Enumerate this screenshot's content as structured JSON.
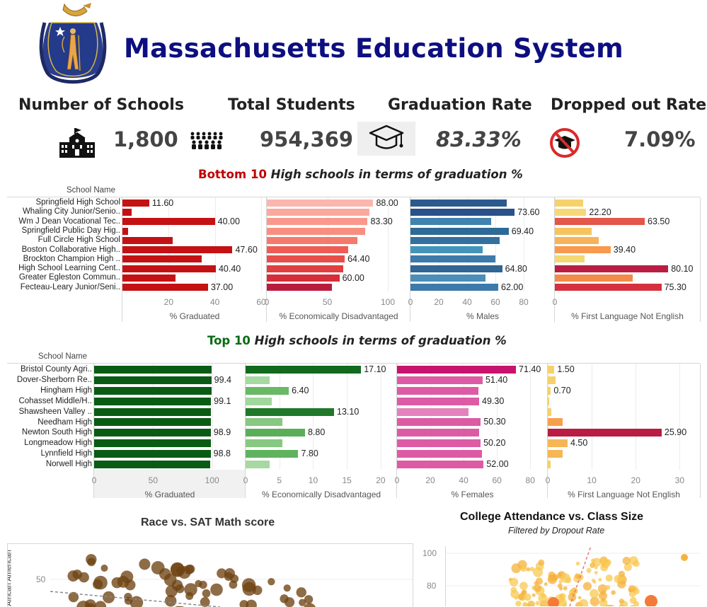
{
  "header": {
    "title": "Massachusetts Education System"
  },
  "kpis": [
    {
      "label": "Number of Schools",
      "value": "1,800",
      "icon": "school-building-icon"
    },
    {
      "label": "Total Students",
      "value": "954,369",
      "icon": "students-crowd-icon"
    },
    {
      "label": "Graduation Rate",
      "value": "83.33%",
      "icon": "graduation-cap-icon"
    },
    {
      "label": "Dropped out Rate",
      "value": "7.09%",
      "icon": "no-graduation-icon"
    }
  ],
  "bottom": {
    "title_prefix": "Bottom 10",
    "title_rest": " High schools in terms of graduation %",
    "column_header": "School Name",
    "schools": [
      "Springfield High School",
      "Whaling City Junior/Senio..",
      "Wm J Dean Vocational Tec..",
      "Springfield Public Day Hig..",
      "Full Circle High School",
      "Boston Collaborative High..",
      "Brockton Champion High ..",
      "High School Learning Cent..",
      "Greater Egleston Commun..",
      "Fecteau-Leary Junior/Seni.."
    ]
  },
  "top": {
    "title_prefix": "Top 10",
    "title_rest": " High schools in terms of graduation %",
    "column_header": "School Name",
    "schools": [
      "Bristol County Agri..",
      "Dover-Sherborn Re..",
      "Hingham High",
      "Cohasset Middle/H..",
      "Shawsheen Valley ..",
      "Needham High",
      "Newton South High",
      "Longmeadow High",
      "Lynnfield High",
      "Norwell High"
    ]
  },
  "chart_data": [
    {
      "type": "bar",
      "orientation": "horizontal",
      "panel": "bottom-graduated",
      "xlabel": "% Graduated",
      "xlim": [
        0,
        60
      ],
      "ticks": [
        20,
        40,
        60
      ],
      "values": [
        11.6,
        3.9,
        40.0,
        2.5,
        21.8,
        47.6,
        34.2,
        40.4,
        23.1,
        37.0
      ],
      "labels": [
        "11.60",
        null,
        "40.00",
        null,
        null,
        "47.60",
        null,
        "40.40",
        null,
        "37.00"
      ],
      "colors": [
        "#c41114"
      ]
    },
    {
      "type": "bar",
      "orientation": "horizontal",
      "panel": "bottom-econ",
      "xlabel": "% Economically Disadvantaged",
      "xlim": [
        0,
        100
      ],
      "ticks": [
        0,
        50,
        100
      ],
      "values": [
        88.0,
        85.0,
        83.3,
        81.5,
        75.0,
        67.0,
        64.4,
        63.0,
        60.0,
        54.0
      ],
      "labels": [
        "88.00",
        null,
        "83.30",
        null,
        null,
        null,
        "64.40",
        null,
        "60.00",
        null
      ],
      "colors": [
        "#fdb6ad",
        "#fba99e",
        "#f9998c",
        "#f78f80",
        "#f47b6c",
        "#ee5d54",
        "#e84e49",
        "#e03e3f",
        "#d32e3a",
        "#b91b3e"
      ]
    },
    {
      "type": "bar",
      "orientation": "horizontal",
      "panel": "bottom-males",
      "xlabel": "% Males",
      "xlim": [
        0,
        100
      ],
      "ticks": [
        0,
        20,
        40,
        60,
        80
      ],
      "values": [
        68.0,
        73.6,
        57.0,
        69.4,
        63.0,
        51.0,
        60.0,
        64.8,
        53.0,
        62.0
      ],
      "labels": [
        null,
        "73.60",
        null,
        "69.40",
        null,
        null,
        null,
        "64.80",
        null,
        "62.00"
      ],
      "colors": [
        "#2c5a8c",
        "#2a5189",
        "#3f83ae",
        "#2d6a97",
        "#34709e",
        "#4394bb",
        "#3b7aaa",
        "#306594",
        "#4a8fb8",
        "#3b7aaa"
      ]
    },
    {
      "type": "bar",
      "orientation": "horizontal",
      "panel": "bottom-first-language",
      "xlabel": "% First Language Not English",
      "xlim": [
        0,
        100
      ],
      "ticks": [
        0
      ],
      "values": [
        20.0,
        22.2,
        63.5,
        26.0,
        31.0,
        39.4,
        21.0,
        80.1,
        55.0,
        75.3
      ],
      "labels": [
        null,
        "22.20",
        "63.50",
        null,
        null,
        "39.40",
        null,
        "80.10",
        null,
        "75.30"
      ],
      "colors": [
        "#f5d26b",
        "#f6d877",
        "#e3564a",
        "#f6c45e",
        "#f7b35c",
        "#f79a4d",
        "#f3d874",
        "#b91d42",
        "#f28b4a",
        "#d5303e"
      ]
    },
    {
      "type": "bar",
      "orientation": "horizontal",
      "panel": "top-graduated",
      "xlabel": "% Graduated",
      "xlim": [
        0,
        120
      ],
      "ticks": [
        0,
        50,
        100
      ],
      "values": [
        99.5,
        99.4,
        99.4,
        99.1,
        99.0,
        98.9,
        98.9,
        98.8,
        98.8,
        98.6
      ],
      "labels": [
        null,
        "99.4",
        null,
        "99.1",
        null,
        null,
        "98.9",
        null,
        "98.8",
        null
      ],
      "colors": [
        "#0a5c14"
      ]
    },
    {
      "type": "bar",
      "orientation": "horizontal",
      "panel": "top-econ",
      "xlabel": "% Economically Disadvantaged",
      "xlim": [
        0,
        22
      ],
      "ticks": [
        0,
        5,
        10,
        15,
        20
      ],
      "values": [
        17.1,
        3.6,
        6.4,
        3.9,
        13.1,
        5.4,
        8.8,
        5.4,
        7.8,
        3.6
      ],
      "labels": [
        "17.10",
        null,
        "6.40",
        null,
        "13.10",
        null,
        "8.80",
        null,
        "7.80",
        null
      ],
      "colors": [
        "#116a1e",
        "#a6d9a1",
        "#69b865",
        "#a1d79c",
        "#20782a",
        "#87c882",
        "#5aae59",
        "#87c882",
        "#5fb35e",
        "#a6d9a1"
      ]
    },
    {
      "type": "bar",
      "orientation": "horizontal",
      "panel": "top-females",
      "xlabel": "% Females",
      "xlim": [
        0,
        85
      ],
      "ticks": [
        0,
        20,
        40,
        60,
        80
      ],
      "values": [
        71.4,
        51.4,
        49.0,
        49.3,
        43.0,
        50.3,
        49.5,
        50.2,
        51.0,
        52.0
      ],
      "labels": [
        "71.40",
        "51.40",
        null,
        "49.30",
        null,
        "50.30",
        null,
        "50.20",
        null,
        "52.00"
      ],
      "colors": [
        "#c8136e",
        "#dd5ba5",
        "#dd5ba5",
        "#dd5ba5",
        "#e382bd",
        "#dd5ba5",
        "#dd5ba5",
        "#dd5ba5",
        "#dd5ba5",
        "#dd5ba5"
      ]
    },
    {
      "type": "bar",
      "orientation": "horizontal",
      "panel": "top-first-language",
      "xlabel": "% First Language Not English",
      "xlim": [
        0,
        33
      ],
      "ticks": [
        0,
        10,
        20,
        30
      ],
      "values": [
        1.5,
        1.8,
        0.7,
        0.3,
        0.8,
        3.4,
        25.9,
        4.5,
        3.3,
        0.6
      ],
      "labels": [
        "1.50",
        null,
        "0.70",
        null,
        null,
        null,
        "25.90",
        "4.50",
        null,
        null
      ],
      "colors": [
        "#f6d06a",
        "#f6d06a",
        "#f6d06a",
        "#f6d06a",
        "#f6d06a",
        "#f7a04c",
        "#b91d42",
        "#f6b656",
        "#f6b656",
        "#f6d06a"
      ]
    },
    {
      "type": "scatter",
      "panel": "race-vs-sat",
      "title": "Race vs. SAT Math score",
      "ylabel": "African American",
      "yticks": [
        50
      ]
    },
    {
      "type": "scatter",
      "panel": "college-vs-class-size",
      "title": "College Attendance vs. Class Size",
      "subtitle": "Filtered by Dropout Rate",
      "yticks": [
        100,
        80
      ]
    }
  ]
}
